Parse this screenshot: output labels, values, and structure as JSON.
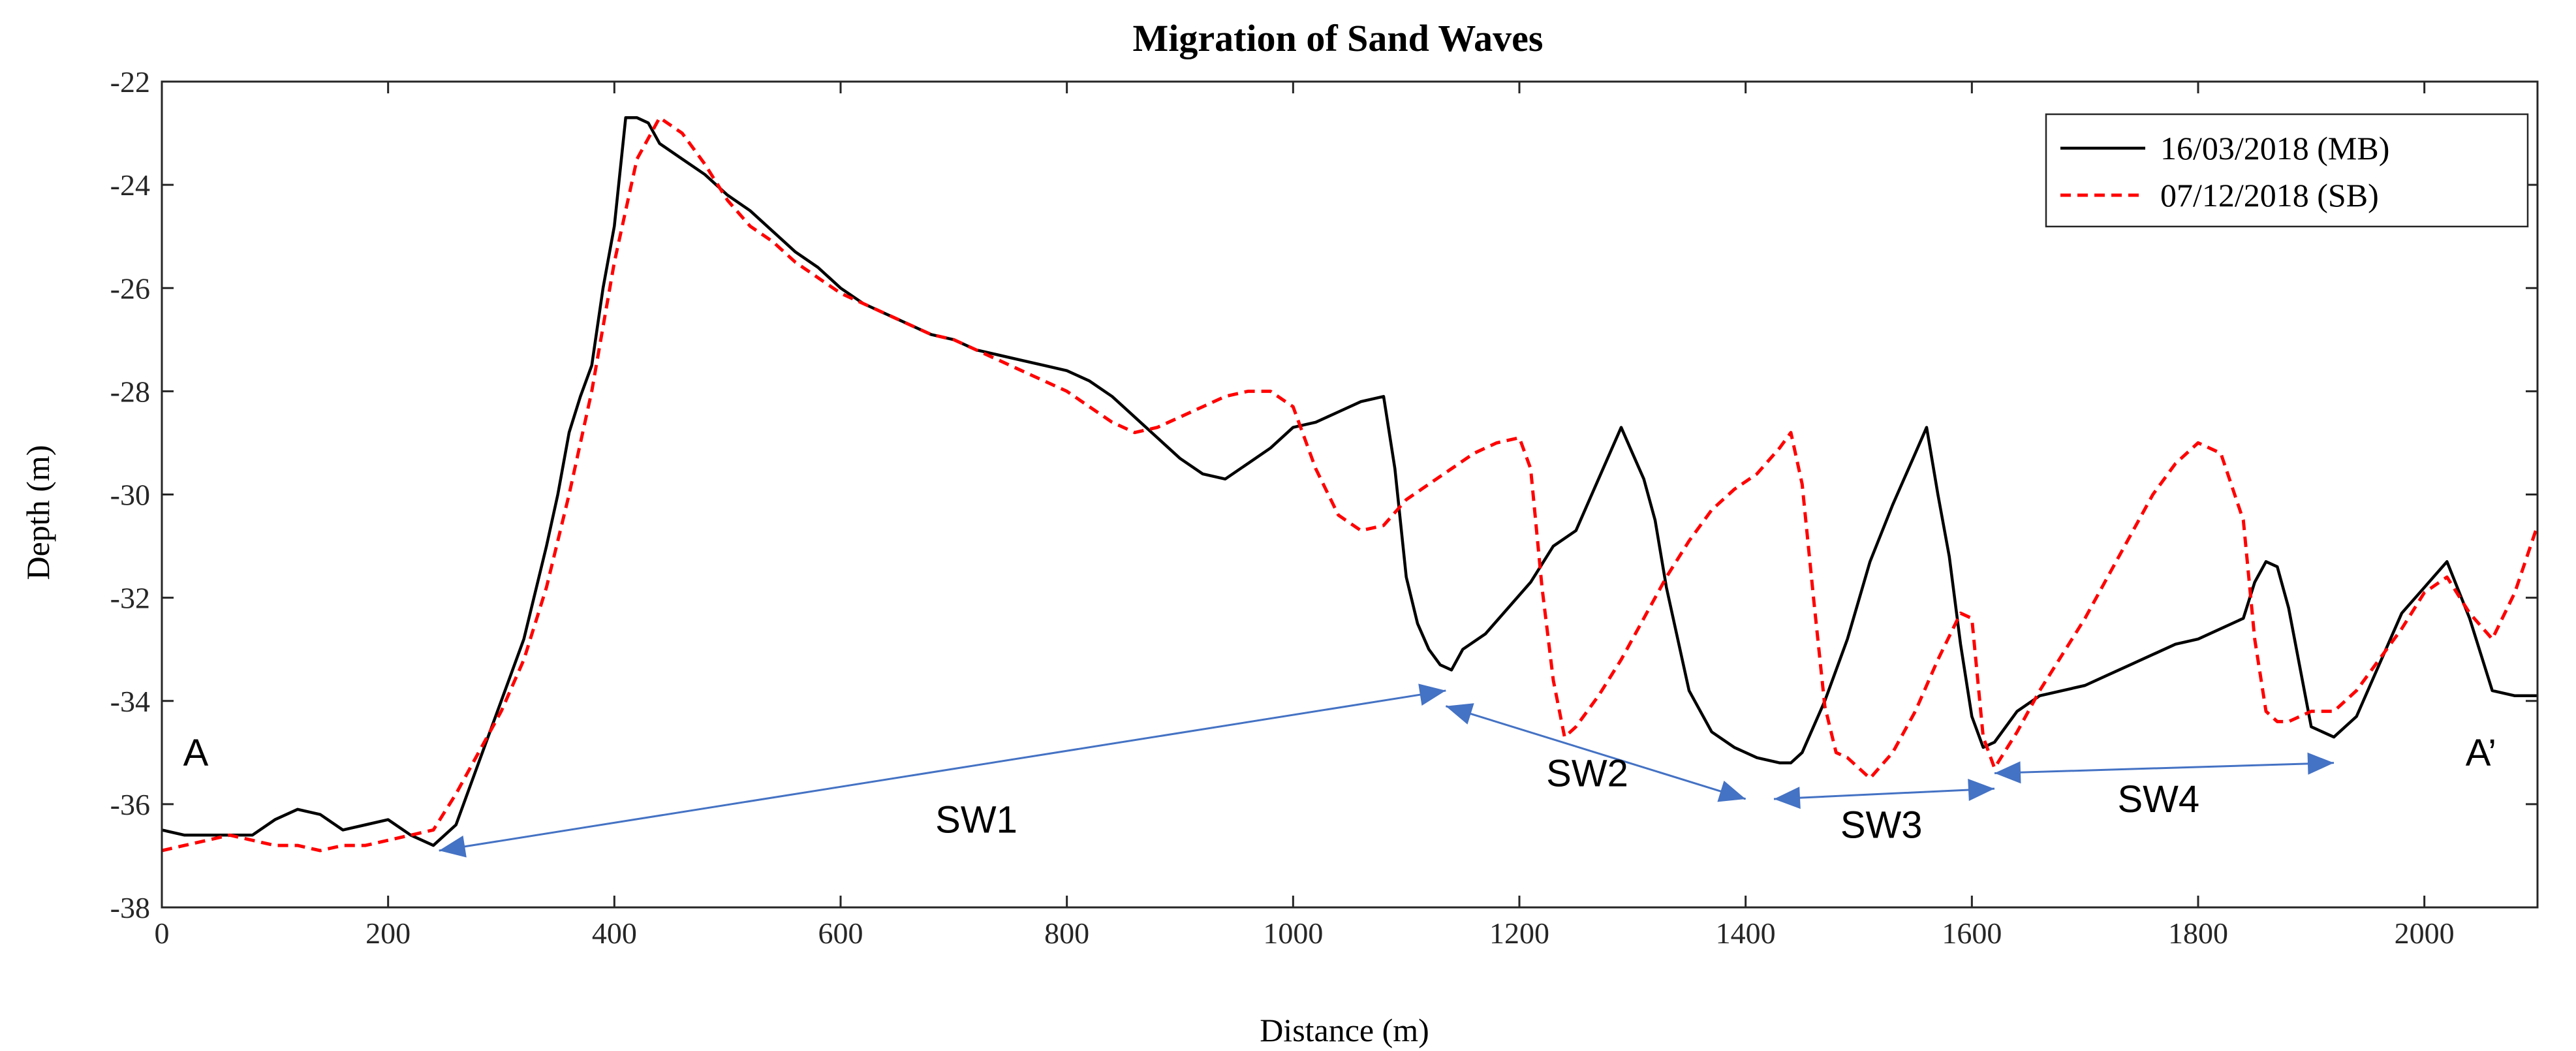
{
  "chart_data": {
    "type": "line",
    "title": "Migration of Sand Waves",
    "xlabel": "Distance (m)",
    "ylabel": "Depth (m)",
    "xlim": [
      0,
      2100
    ],
    "ylim": [
      -38,
      -22
    ],
    "xticks": [
      0,
      200,
      400,
      600,
      800,
      1000,
      1200,
      1400,
      1600,
      1800,
      2000
    ],
    "yticks": [
      -22,
      -24,
      -26,
      -28,
      -30,
      -32,
      -34,
      -36,
      -38
    ],
    "grid": false,
    "legend_position": "top-right",
    "series": [
      {
        "name": "16/03/2018 (MB)",
        "color": "#000000",
        "style": "solid",
        "x": [
          0,
          20,
          40,
          60,
          80,
          100,
          120,
          140,
          160,
          180,
          200,
          220,
          240,
          260,
          280,
          300,
          320,
          340,
          350,
          360,
          370,
          380,
          390,
          400,
          410,
          420,
          430,
          440,
          460,
          480,
          500,
          520,
          540,
          560,
          580,
          600,
          620,
          640,
          660,
          680,
          700,
          720,
          740,
          760,
          780,
          800,
          820,
          840,
          860,
          880,
          900,
          920,
          940,
          960,
          980,
          1000,
          1020,
          1040,
          1060,
          1080,
          1090,
          1100,
          1110,
          1120,
          1130,
          1140,
          1150,
          1170,
          1190,
          1210,
          1230,
          1250,
          1270,
          1290,
          1300,
          1310,
          1320,
          1330,
          1350,
          1370,
          1390,
          1410,
          1430,
          1440,
          1450,
          1470,
          1490,
          1510,
          1530,
          1550,
          1560,
          1570,
          1580,
          1590,
          1600,
          1610,
          1620,
          1640,
          1660,
          1680,
          1700,
          1720,
          1740,
          1760,
          1780,
          1800,
          1820,
          1840,
          1850,
          1860,
          1870,
          1880,
          1900,
          1920,
          1940,
          1960,
          1980,
          2000,
          2020,
          2040,
          2060,
          2080,
          2100
        ],
        "y": [
          -36.5,
          -36.6,
          -36.6,
          -36.6,
          -36.6,
          -36.3,
          -36.1,
          -36.2,
          -36.5,
          -36.4,
          -36.3,
          -36.6,
          -36.8,
          -36.4,
          -35.2,
          -34.0,
          -32.8,
          -31.0,
          -30.0,
          -28.8,
          -28.1,
          -27.5,
          -26.0,
          -24.8,
          -22.7,
          -22.7,
          -22.8,
          -23.2,
          -23.5,
          -23.8,
          -24.2,
          -24.5,
          -24.9,
          -25.3,
          -25.6,
          -26.0,
          -26.3,
          -26.5,
          -26.7,
          -26.9,
          -27.0,
          -27.2,
          -27.3,
          -27.4,
          -27.5,
          -27.6,
          -27.8,
          -28.1,
          -28.5,
          -28.9,
          -29.3,
          -29.6,
          -29.7,
          -29.4,
          -29.1,
          -28.7,
          -28.6,
          -28.4,
          -28.2,
          -28.1,
          -29.5,
          -31.6,
          -32.5,
          -33.0,
          -33.3,
          -33.4,
          -33.0,
          -32.7,
          -32.2,
          -31.7,
          -31.0,
          -30.7,
          -29.7,
          -28.7,
          -29.2,
          -29.7,
          -30.5,
          -31.8,
          -33.8,
          -34.6,
          -34.9,
          -35.1,
          -35.2,
          -35.2,
          -35.0,
          -34.0,
          -32.8,
          -31.3,
          -30.2,
          -29.2,
          -28.7,
          -30.0,
          -31.2,
          -32.9,
          -34.3,
          -34.9,
          -34.8,
          -34.2,
          -33.9,
          -33.8,
          -33.7,
          -33.5,
          -33.3,
          -33.1,
          -32.9,
          -32.8,
          -32.6,
          -32.4,
          -31.7,
          -31.3,
          -31.4,
          -32.2,
          -34.5,
          -34.7,
          -34.3,
          -33.3,
          -32.3,
          -31.8,
          -31.3,
          -32.4,
          -33.8,
          -33.9,
          -33.9
        ]
      },
      {
        "name": "07/12/2018 (SB)",
        "color": "#ff0000",
        "style": "dashed",
        "x": [
          0,
          20,
          40,
          60,
          80,
          100,
          120,
          140,
          160,
          180,
          200,
          220,
          240,
          260,
          280,
          300,
          320,
          340,
          360,
          380,
          400,
          420,
          440,
          460,
          480,
          500,
          520,
          540,
          560,
          580,
          600,
          620,
          640,
          660,
          680,
          700,
          720,
          740,
          760,
          780,
          800,
          820,
          840,
          860,
          880,
          900,
          920,
          940,
          960,
          980,
          1000,
          1020,
          1040,
          1060,
          1080,
          1100,
          1120,
          1140,
          1160,
          1180,
          1200,
          1210,
          1220,
          1230,
          1240,
          1250,
          1270,
          1290,
          1310,
          1330,
          1350,
          1370,
          1390,
          1410,
          1430,
          1440,
          1450,
          1460,
          1470,
          1480,
          1490,
          1500,
          1510,
          1530,
          1550,
          1570,
          1590,
          1600,
          1610,
          1620,
          1640,
          1660,
          1680,
          1700,
          1720,
          1740,
          1760,
          1780,
          1800,
          1820,
          1840,
          1850,
          1860,
          1870,
          1880,
          1890,
          1900,
          1920,
          1940,
          1960,
          1980,
          2000,
          2020,
          2040,
          2060,
          2080,
          2100
        ],
        "y": [
          -36.9,
          -36.8,
          -36.7,
          -36.6,
          -36.7,
          -36.8,
          -36.8,
          -36.9,
          -36.8,
          -36.8,
          -36.7,
          -36.6,
          -36.5,
          -35.8,
          -35.0,
          -34.2,
          -33.2,
          -31.8,
          -30.0,
          -28.0,
          -25.5,
          -23.5,
          -22.7,
          -23.0,
          -23.6,
          -24.3,
          -24.8,
          -25.1,
          -25.5,
          -25.8,
          -26.1,
          -26.3,
          -26.5,
          -26.7,
          -26.9,
          -27.0,
          -27.2,
          -27.4,
          -27.6,
          -27.8,
          -28.0,
          -28.3,
          -28.6,
          -28.8,
          -28.7,
          -28.5,
          -28.3,
          -28.1,
          -28.0,
          -28.0,
          -28.3,
          -29.5,
          -30.4,
          -30.7,
          -30.6,
          -30.1,
          -29.8,
          -29.5,
          -29.2,
          -29.0,
          -28.9,
          -29.5,
          -31.8,
          -33.6,
          -34.7,
          -34.5,
          -33.9,
          -33.2,
          -32.4,
          -31.6,
          -30.9,
          -30.3,
          -29.9,
          -29.6,
          -29.1,
          -28.8,
          -29.8,
          -32.0,
          -34.1,
          -35.0,
          -35.1,
          -35.3,
          -35.5,
          -35.0,
          -34.2,
          -33.2,
          -32.3,
          -32.4,
          -34.7,
          -35.3,
          -34.6,
          -33.8,
          -33.1,
          -32.4,
          -31.6,
          -30.8,
          -30.0,
          -29.4,
          -29.0,
          -29.2,
          -30.5,
          -32.8,
          -34.2,
          -34.4,
          -34.4,
          -34.3,
          -34.2,
          -34.2,
          -33.8,
          -33.2,
          -32.6,
          -31.9,
          -31.6,
          -32.3,
          -32.8,
          -31.9,
          -30.6
        ]
      }
    ],
    "annotations": {
      "point_labels": [
        {
          "text": "A",
          "x": 30,
          "y": -35
        },
        {
          "text": "A’",
          "x": 2050,
          "y": -35
        }
      ],
      "arrows": [
        {
          "label": "SW1",
          "from": [
            245,
            -36.9
          ],
          "to": [
            1135,
            -33.8
          ],
          "label_x": 720,
          "label_y": -36.3
        },
        {
          "label": "SW2",
          "from": [
            1135,
            -34.1
          ],
          "to": [
            1400,
            -35.9
          ],
          "label_x": 1260,
          "label_y": -35.4
        },
        {
          "label": "SW3",
          "from": [
            1425,
            -35.9
          ],
          "to": [
            1620,
            -35.7
          ],
          "label_x": 1520,
          "label_y": -36.4
        },
        {
          "label": "SW4",
          "from": [
            1620,
            -35.4
          ],
          "to": [
            1920,
            -35.2
          ],
          "label_x": 1765,
          "label_y": -35.9
        }
      ],
      "arrow_color": "#4472c4"
    }
  }
}
